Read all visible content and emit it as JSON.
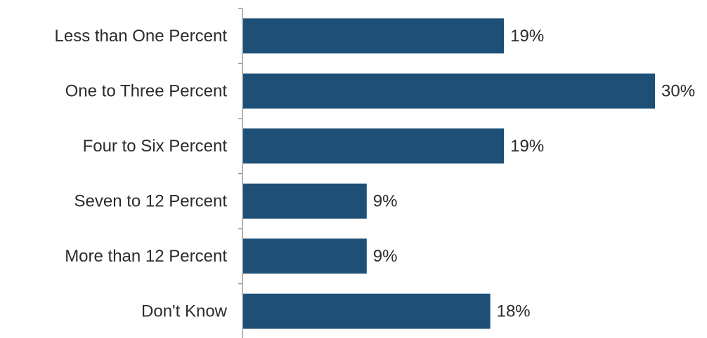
{
  "chart_data": {
    "type": "bar",
    "orientation": "horizontal",
    "categories": [
      "Less than One Percent",
      "One to Three Percent",
      "Four to Six Percent",
      "Seven to 12 Percent",
      "More than 12 Percent",
      "Don't Know"
    ],
    "values": [
      19,
      30,
      19,
      9,
      9,
      18
    ],
    "data_labels": [
      "19%",
      "30%",
      "19%",
      "9%",
      "9%",
      "18%"
    ],
    "unit": "%",
    "xlim": [
      0,
      30
    ],
    "bar_color": "#1e5077",
    "axis_color": "#9a9a9a",
    "text_color": "#2b2b2b",
    "grid": false,
    "title": "",
    "xlabel": "",
    "ylabel": ""
  }
}
